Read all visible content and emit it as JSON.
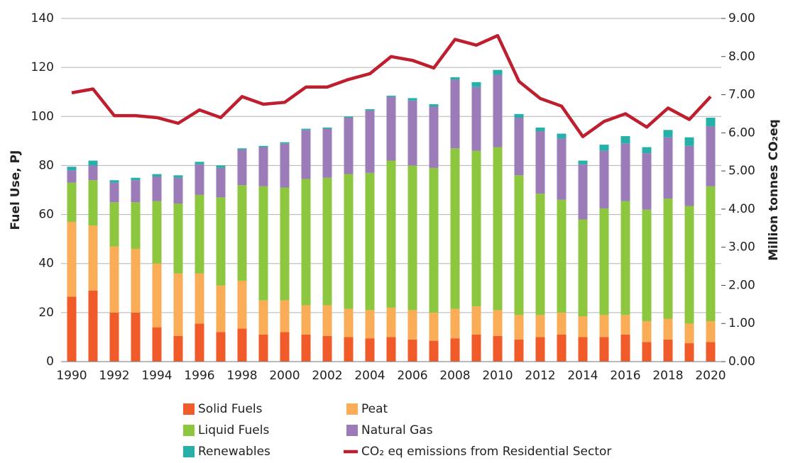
{
  "chart_data": {
    "type": "bar",
    "stacked": true,
    "ylabel": "Fuel Use, PJ",
    "y2label": "Million tonnes CO₂eq",
    "categories": [
      "1990",
      null,
      "1992",
      null,
      "1994",
      null,
      "1996",
      null,
      "1998",
      null,
      "2000",
      null,
      "2002",
      null,
      "2004",
      null,
      "2006",
      null,
      "2008",
      null,
      "2010",
      null,
      "2012",
      null,
      "2014",
      null,
      "2016",
      null,
      "2018",
      null,
      "2020"
    ],
    "ylim": [
      0,
      140
    ],
    "yticks": [
      0,
      20,
      40,
      60,
      80,
      100,
      120,
      140
    ],
    "y2lim": [
      0,
      9
    ],
    "y2ticks": [
      {
        "value": 0,
        "label": "0.00"
      },
      {
        "value": 1,
        "label": "1.00"
      },
      {
        "value": 2,
        "label": "2.00"
      },
      {
        "value": 3,
        "label": "3.00"
      },
      {
        "value": 4,
        "label": "4.00"
      },
      {
        "value": 5,
        "label": "5.00"
      },
      {
        "value": 6,
        "label": "6.00"
      },
      {
        "value": 7,
        "label": "7.00"
      },
      {
        "value": 8,
        "label": "8.00"
      },
      {
        "value": 9,
        "label": "9.00"
      }
    ],
    "grid": true,
    "series": [
      {
        "name": "Solid Fuels",
        "color": "#f15a29",
        "values": [
          26.5,
          29,
          20,
          20,
          14,
          10.5,
          15.5,
          12,
          13.5,
          11,
          12,
          11,
          10.5,
          10,
          9.5,
          10,
          9,
          8.5,
          9.5,
          11,
          10.5,
          9,
          10,
          11,
          10,
          10,
          11,
          8,
          9,
          7.5,
          8
        ]
      },
      {
        "name": "Peat",
        "color": "#fbac56",
        "values": [
          30.5,
          26.5,
          27,
          26,
          26,
          25.5,
          20.5,
          19,
          19.5,
          14,
          13,
          12,
          12.5,
          11.5,
          11.5,
          12,
          12,
          11.5,
          12,
          11.5,
          10.5,
          10,
          9,
          9,
          8.5,
          9,
          8,
          8.5,
          8.5,
          8,
          8.5
        ]
      },
      {
        "name": "Liquid Fuels",
        "color": "#8dc63f",
        "values": [
          16,
          18.5,
          18,
          19,
          25.5,
          28.5,
          32,
          36,
          39,
          46.5,
          46,
          51.5,
          52,
          55,
          56,
          60,
          59,
          59,
          65.5,
          63.5,
          66.5,
          57,
          49.5,
          46,
          39.5,
          43.5,
          46.5,
          45.5,
          49,
          48,
          55
        ]
      },
      {
        "name": "Natural Gas",
        "color": "#9b7bb8",
        "values": [
          5,
          6,
          8,
          9,
          10,
          10.5,
          12.5,
          12,
          14.5,
          16,
          18,
          20,
          20,
          23,
          25.5,
          26,
          26.5,
          25,
          28,
          26,
          29.5,
          23.5,
          25.5,
          25,
          22.5,
          23.5,
          23.5,
          23,
          25,
          24.5,
          24.5
        ]
      },
      {
        "name": "Renewables",
        "color": "#26b0a8",
        "values": [
          1.5,
          2,
          1,
          1,
          1,
          1,
          1,
          1,
          0.5,
          0.5,
          0.5,
          0.5,
          0.5,
          0.5,
          0.5,
          0.5,
          1,
          1,
          1,
          2,
          2,
          1.5,
          1.5,
          2,
          1.5,
          2.5,
          3,
          2.5,
          3,
          3.5,
          3.5
        ]
      },
      {
        "name": "CO₂ eq emissions from Residential Sector",
        "color": "#be1e2d",
        "type": "line",
        "axis": "y2",
        "values": [
          7.05,
          7.15,
          6.45,
          6.45,
          6.4,
          6.25,
          6.6,
          6.4,
          6.95,
          6.75,
          6.8,
          7.2,
          7.2,
          7.4,
          7.55,
          8.0,
          7.9,
          7.7,
          8.45,
          8.3,
          8.55,
          7.35,
          6.9,
          6.7,
          5.9,
          6.3,
          6.5,
          6.15,
          6.65,
          6.35,
          6.95
        ]
      }
    ]
  }
}
